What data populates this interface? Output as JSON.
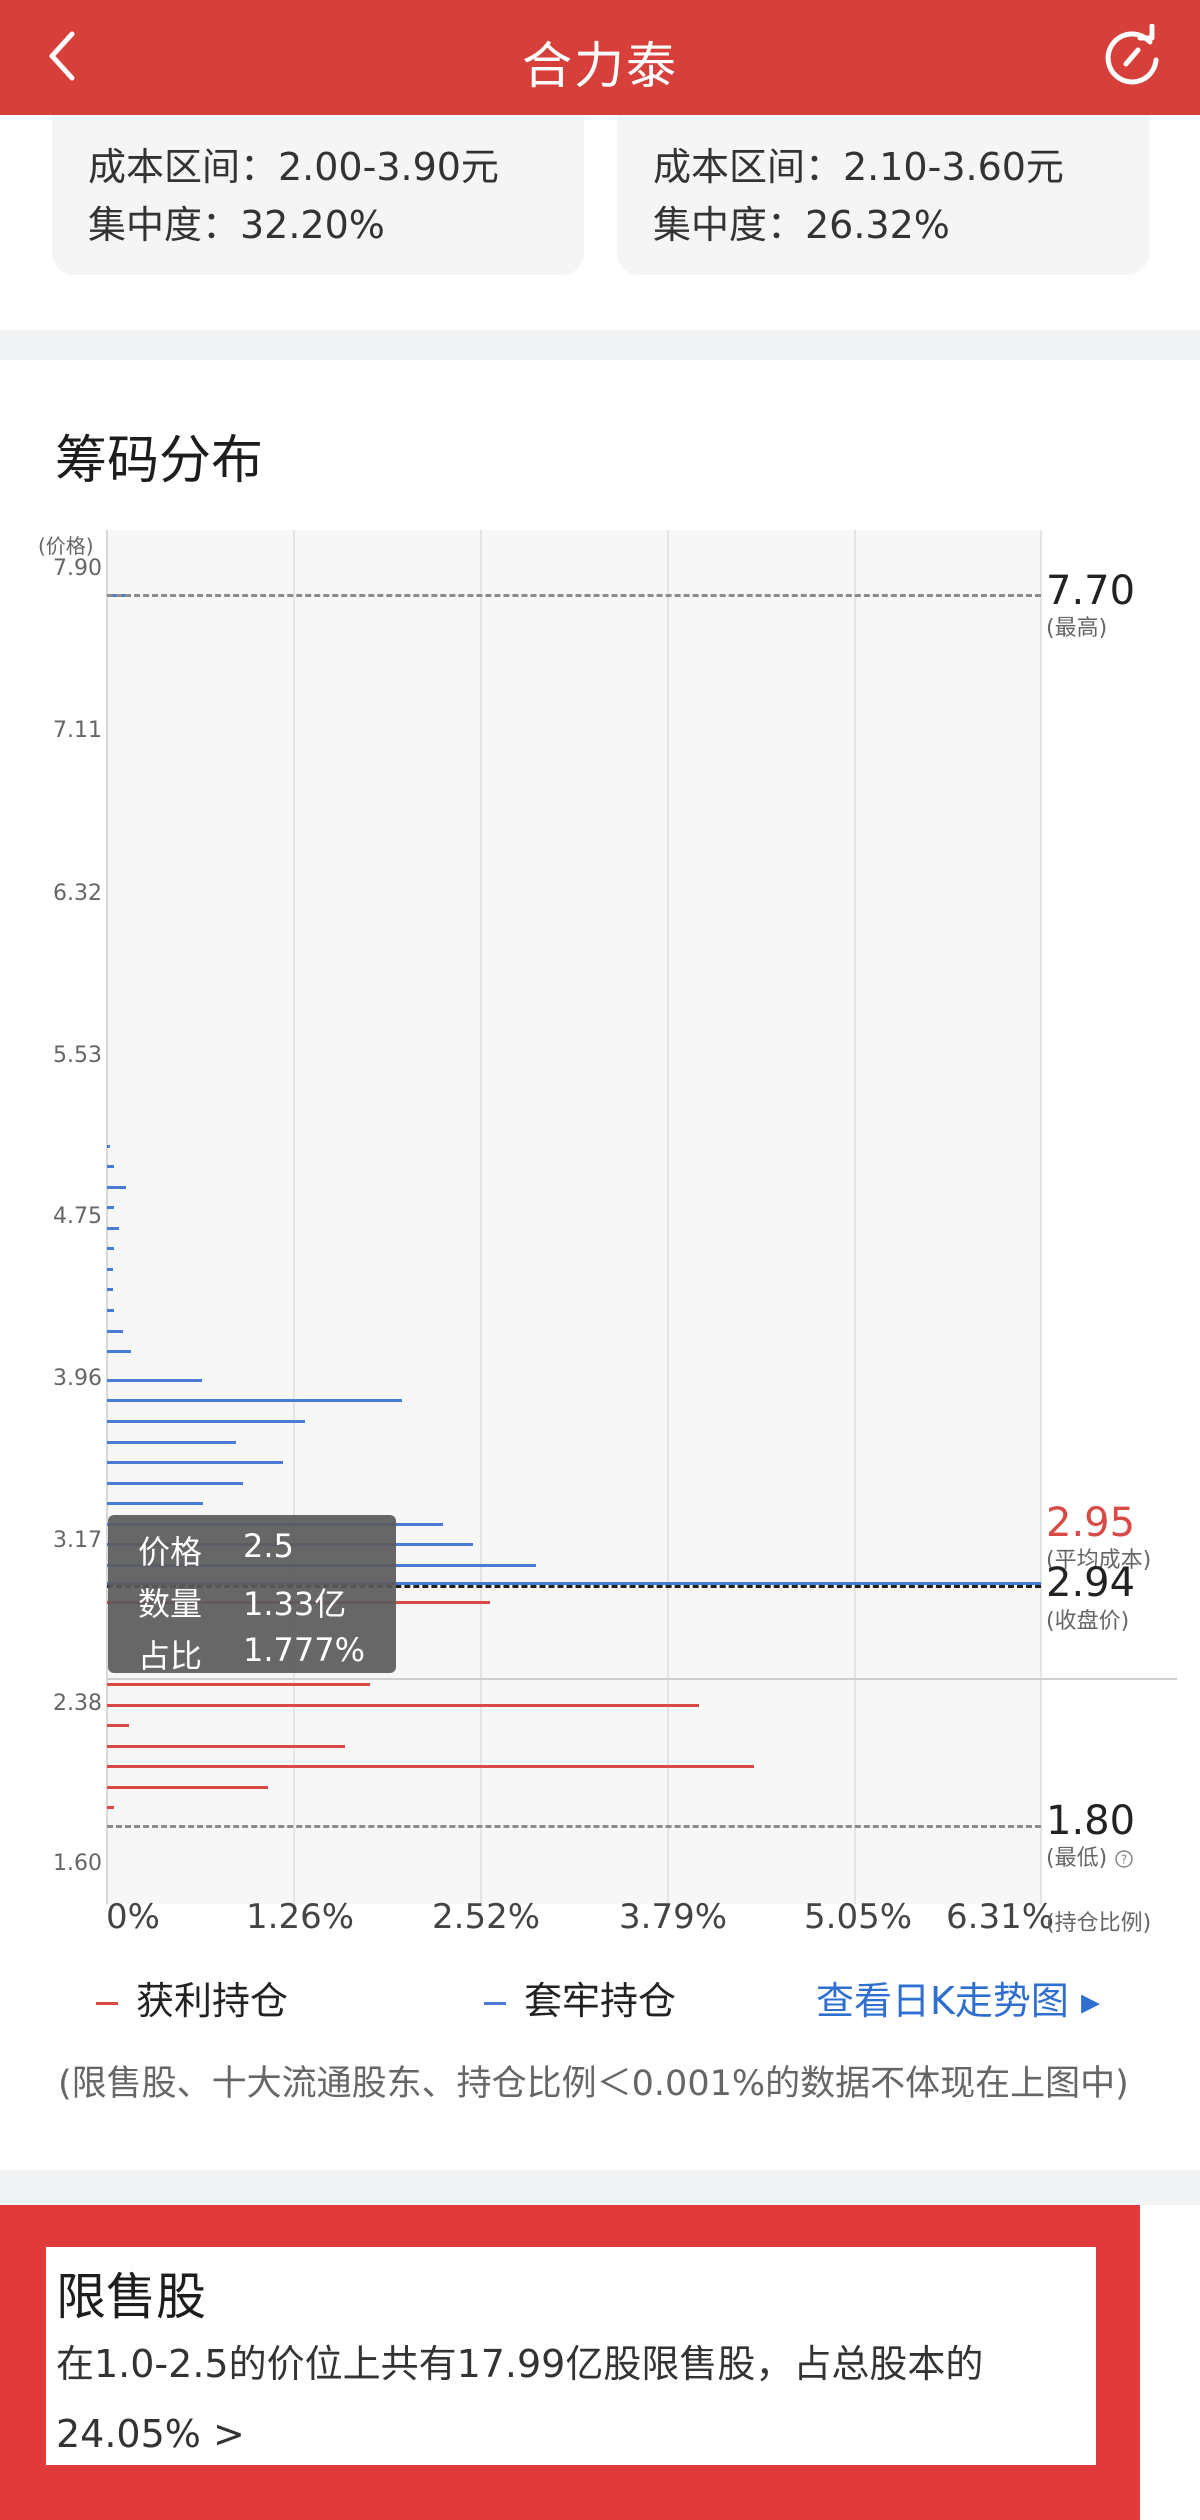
{
  "header": {
    "title": "合力泰",
    "back_icon": "chevron-left-icon",
    "refresh_icon": "refresh-icon"
  },
  "cost_cards": [
    {
      "cost_range": "成本区间：2.00-3.90元",
      "concentration": "集中度：32.20%"
    },
    {
      "cost_range": "成本区间：2.10-3.60元",
      "concentration": "集中度：26.32%"
    }
  ],
  "chip_section": {
    "title": "筹码分布",
    "y_unit": "(价格)",
    "x_unit": "(持仓比例)",
    "y_ticks": [
      "7.90",
      "7.11",
      "6.32",
      "5.53",
      "4.75",
      "3.96",
      "3.17",
      "2.38",
      "1.60"
    ],
    "x_ticks": [
      "0%",
      "1.26%",
      "2.52%",
      "3.79%",
      "5.05%",
      "6.31%"
    ],
    "levels": {
      "high": {
        "value": "7.70",
        "label": "(最高)"
      },
      "avg_cost": {
        "value": "2.95",
        "label": "(平均成本)"
      },
      "close": {
        "value": "2.94",
        "label": "(收盘价)"
      },
      "low": {
        "value": "1.80",
        "label": "(最低)"
      }
    },
    "tooltip": {
      "price_label": "价格",
      "price_value": "2.5",
      "qty_label": "数量",
      "qty_value": "1.33亿",
      "ratio_label": "占比",
      "ratio_value": "1.777%"
    },
    "legend": {
      "profit": "获利持仓",
      "trapped": "套牢持仓",
      "link": "查看日K走势图 ▸"
    },
    "note": "(限售股、十大流通股东、持仓比例＜0.001%的数据不体现在上图中)",
    "colors": {
      "profit": "#d94a46",
      "trapped": "#4a7bd5",
      "header": "#d63f3a",
      "link": "#2f6fd0"
    }
  },
  "chart_data": {
    "type": "bar",
    "orientation": "horizontal",
    "y_axis": {
      "label": "(价格)",
      "range": [
        1.6,
        7.9
      ],
      "ticks": [
        7.9,
        7.11,
        6.32,
        5.53,
        4.75,
        3.96,
        3.17,
        2.38,
        1.6
      ]
    },
    "x_axis": {
      "label": "(持仓比例)",
      "range_percent": [
        0,
        6.31
      ],
      "ticks": [
        "0%",
        "1.26%",
        "2.52%",
        "3.79%",
        "5.05%",
        "6.31%"
      ]
    },
    "series": [
      {
        "name": "套牢持仓",
        "points": [
          {
            "price": 7.78,
            "ratio": 0.12
          },
          {
            "price": 5.1,
            "ratio": 0.02
          },
          {
            "price": 5.0,
            "ratio": 0.05
          },
          {
            "price": 4.9,
            "ratio": 0.13
          },
          {
            "price": 4.8,
            "ratio": 0.05
          },
          {
            "price": 4.7,
            "ratio": 0.08
          },
          {
            "price": 4.6,
            "ratio": 0.05
          },
          {
            "price": 4.5,
            "ratio": 0.04
          },
          {
            "price": 4.4,
            "ratio": 0.04
          },
          {
            "price": 4.3,
            "ratio": 0.05
          },
          {
            "price": 4.2,
            "ratio": 0.11
          },
          {
            "price": 4.1,
            "ratio": 0.16
          },
          {
            "price": 3.96,
            "ratio": 0.64
          },
          {
            "price": 3.86,
            "ratio": 1.99
          },
          {
            "price": 3.76,
            "ratio": 1.34
          },
          {
            "price": 3.66,
            "ratio": 0.87
          },
          {
            "price": 3.56,
            "ratio": 1.19
          },
          {
            "price": 3.46,
            "ratio": 0.92
          },
          {
            "price": 3.36,
            "ratio": 0.65
          },
          {
            "price": 3.26,
            "ratio": 2.27
          },
          {
            "price": 3.16,
            "ratio": 2.47
          },
          {
            "price": 3.06,
            "ratio": 2.9
          },
          {
            "price": 2.97,
            "ratio": 6.31
          }
        ]
      },
      {
        "name": "获利持仓",
        "points": [
          {
            "price": 2.88,
            "ratio": 2.59
          },
          {
            "price": 2.48,
            "ratio": 1.777
          },
          {
            "price": 2.38,
            "ratio": 4.0
          },
          {
            "price": 2.28,
            "ratio": 0.15
          },
          {
            "price": 2.18,
            "ratio": 1.61
          },
          {
            "price": 2.08,
            "ratio": 4.37
          },
          {
            "price": 1.98,
            "ratio": 1.09
          },
          {
            "price": 1.88,
            "ratio": 0.05
          }
        ]
      }
    ],
    "reference_lines": [
      {
        "name": "最高",
        "price": 7.7
      },
      {
        "name": "平均成本",
        "price": 2.95
      },
      {
        "name": "收盘价",
        "price": 2.94
      },
      {
        "name": "最低",
        "price": 1.8
      }
    ]
  },
  "restricted": {
    "title": "限售股",
    "text": "在1.0-2.5的价位上共有17.99亿股限售股，占总股本的24.05% >"
  }
}
